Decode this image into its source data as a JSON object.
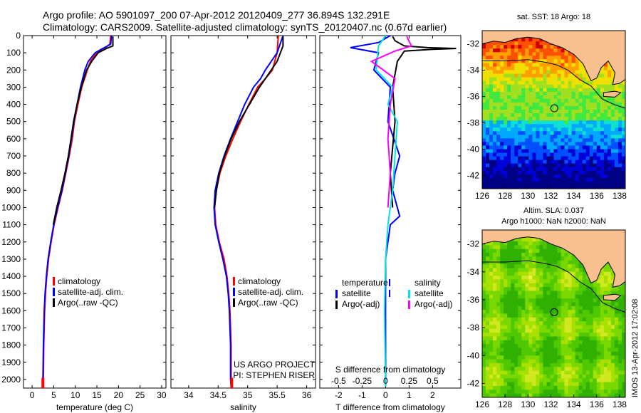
{
  "title": {
    "line1": "Argo profile: AO 5901097_200 07-Apr-2012 20120409_277 36.894S 132.291E",
    "line2": "Climatology: CARS2009. Satellite-adjusted climatology: synTS_20120407.nc (0.67d earlier)"
  },
  "side_text": "IMOS 13-Apr-2012 17:02:08",
  "colors": {
    "climatology": "#ff0000",
    "satellite": "#0000ff",
    "argo": "#000000",
    "satellite_salinity": "#00e5e5",
    "argo_salinity": "#ff00ff"
  },
  "chart_data": [
    {
      "type": "line",
      "id": "temperature",
      "xlabel": "temperature (deg C)",
      "ylabel": "",
      "xlim": [
        -2,
        31
      ],
      "ylim": [
        2050,
        0
      ],
      "y_reversed": true,
      "xticks": [
        0,
        5,
        10,
        15,
        20,
        25,
        30
      ],
      "yticks": [
        0,
        100,
        200,
        300,
        400,
        500,
        600,
        700,
        800,
        900,
        1000,
        1100,
        1200,
        1300,
        1400,
        1500,
        1600,
        1700,
        1800,
        1900,
        2000
      ],
      "legend": [
        "climatology",
        "satellite-adj. clim.",
        "Argo(..raw -QC)"
      ],
      "series": [
        {
          "name": "climatology",
          "color": "#ff0000",
          "x": [
            18.2,
            18.0,
            16.5,
            15.0,
            13.5,
            12.8,
            11.5,
            10.6,
            9.8,
            9.3,
            8.6,
            7.8,
            7.0,
            6.0,
            5.1,
            4.4,
            3.8,
            3.4,
            3.1,
            2.9,
            2.7,
            2.6,
            2.5
          ],
          "y": [
            0,
            50,
            80,
            100,
            150,
            200,
            300,
            400,
            500,
            600,
            700,
            800,
            900,
            1000,
            1100,
            1200,
            1300,
            1400,
            1500,
            1600,
            1800,
            2000,
            2040
          ]
        },
        {
          "name": "satellite",
          "color": "#0000ff",
          "x": [
            18.4,
            18.2,
            16.0,
            14.6,
            13.0,
            12.2,
            11.2,
            10.4,
            9.7,
            9.1,
            8.5,
            7.7,
            6.9,
            5.9,
            5.0,
            4.3,
            3.7,
            3.3,
            3.0,
            2.8,
            2.6,
            2.5,
            2.4
          ],
          "y": [
            0,
            50,
            80,
            100,
            150,
            200,
            300,
            400,
            500,
            600,
            700,
            800,
            900,
            1000,
            1100,
            1200,
            1300,
            1400,
            1500,
            1600,
            1800,
            2000,
            2040
          ]
        },
        {
          "name": "Argo",
          "color": "#000000",
          "x": [
            18.7,
            18.7,
            17.2,
            15.3,
            13.8,
            12.6,
            11.4,
            10.4,
            9.6,
            9.0,
            8.4,
            7.6,
            6.7,
            5.7,
            4.9
          ],
          "y": [
            5,
            60,
            75,
            100,
            150,
            200,
            300,
            400,
            500,
            600,
            700,
            800,
            900,
            1000,
            1100
          ]
        }
      ]
    },
    {
      "type": "line",
      "id": "salinity",
      "xlabel": "salinity",
      "ylabel": "",
      "xlim": [
        33.7,
        36.15
      ],
      "ylim": [
        2050,
        0
      ],
      "y_reversed": true,
      "xticks": [
        34,
        34.5,
        35,
        35.5,
        36
      ],
      "legend": [
        "climatology",
        "satellite-adj. clim.",
        "Argo(..raw -QC)"
      ],
      "annotation": [
        "US ARGO PROJECT",
        "PI: STEPHEN RISER"
      ],
      "series": [
        {
          "name": "climatology",
          "color": "#ff0000",
          "x": [
            35.52,
            35.5,
            35.42,
            35.3,
            35.17,
            35.02,
            34.88,
            34.75,
            34.63,
            34.53,
            34.47,
            34.44,
            34.46,
            34.52,
            34.6,
            34.65,
            34.68,
            34.7,
            34.72,
            34.72,
            34.73
          ],
          "y": [
            0,
            100,
            200,
            250,
            300,
            400,
            500,
            600,
            700,
            800,
            900,
            1000,
            1100,
            1200,
            1300,
            1400,
            1500,
            1600,
            1800,
            2000,
            2040
          ]
        },
        {
          "name": "satellite",
          "color": "#0000ff",
          "x": [
            35.6,
            35.5,
            35.3,
            35.22,
            35.1,
            34.95,
            34.83,
            34.71,
            34.6,
            34.51,
            34.45,
            34.43,
            34.45,
            34.51,
            34.58,
            34.64,
            34.67,
            34.69,
            34.71,
            34.71,
            34.72
          ],
          "y": [
            0,
            100,
            200,
            250,
            300,
            400,
            500,
            600,
            700,
            800,
            900,
            1000,
            1100,
            1200,
            1300,
            1400,
            1500,
            1600,
            1800,
            2000,
            2040
          ]
        },
        {
          "name": "Argo",
          "color": "#000000",
          "x": [
            35.6,
            35.6,
            35.5,
            35.4,
            35.2,
            35.03,
            34.86,
            34.72,
            34.61,
            34.52,
            34.47,
            34.44
          ],
          "y": [
            5,
            60,
            150,
            200,
            300,
            400,
            500,
            600,
            700,
            800,
            900,
            1000
          ]
        }
      ]
    },
    {
      "type": "line",
      "id": "difference",
      "xlabel_top": "S difference from climatology",
      "xlabel": "T difference from climatology",
      "xlim": [
        -2.8,
        3.2
      ],
      "ylim": [
        2050,
        0
      ],
      "y_reversed": true,
      "xticks_top": [
        -0.5,
        -0.25,
        0,
        0.25,
        0.5
      ],
      "xticks": [
        -2,
        -1,
        0,
        1,
        2
      ],
      "xticks_top_pos": [
        -2,
        -1,
        0,
        1,
        2
      ],
      "legend_left": [
        "temperature",
        "satellite",
        "Argo(-adj)"
      ],
      "legend_right": [
        "salinity",
        "satellite",
        "Argo(-adj)"
      ],
      "series": [
        {
          "name": "T satellite",
          "color": "#0000ff",
          "x": [
            0.2,
            -0.3,
            -1.5,
            -0.3,
            -0.5,
            0.2,
            0.1,
            0.6,
            0.4,
            0.3,
            0.5,
            0.6,
            0.2,
            0.0,
            0.0,
            0.0
          ],
          "y": [
            0,
            40,
            70,
            100,
            200,
            300,
            500,
            700,
            800,
            900,
            1000,
            1050,
            1100,
            1300,
            1600,
            2040
          ]
        },
        {
          "name": "T Argo(-adj)",
          "color": "#000000",
          "x": [
            0.3,
            0.4,
            0.8,
            1.8,
            3.0,
            2.0,
            0.8,
            0.5,
            0.3,
            0.4,
            0.2,
            0.3
          ],
          "y": [
            5,
            30,
            60,
            70,
            75,
            80,
            90,
            150,
            300,
            500,
            800,
            1000
          ]
        },
        {
          "name": "S satellite",
          "color": "#00e5e5",
          "x": [
            0.0,
            -0.3,
            -0.4,
            0.3,
            0.1,
            0.5,
            0.4,
            0.3,
            0.1,
            0.0,
            -0.05,
            0.0
          ],
          "y": [
            0,
            60,
            200,
            300,
            400,
            500,
            700,
            900,
            1100,
            1300,
            1600,
            2040
          ]
        },
        {
          "name": "S Argo(-adj)",
          "color": "#ff00ff",
          "x": [
            0.9,
            1.1,
            0.4,
            -0.6,
            0.4,
            0.2,
            0.1,
            0.2,
            0.1
          ],
          "y": [
            5,
            60,
            90,
            150,
            250,
            400,
            600,
            800,
            1000
          ]
        }
      ]
    },
    {
      "type": "heatmap",
      "id": "sst-map",
      "title": "sat. SST: 18 Argo: 18",
      "xlim": [
        126,
        138.5
      ],
      "ylim": [
        -43,
        -31
      ],
      "xticks": [
        126,
        128,
        130,
        132,
        134,
        136,
        138
      ],
      "yticks": [
        -32,
        -34,
        -36,
        -38,
        -40,
        -42
      ],
      "marker": {
        "lon": 132.291,
        "lat": -36.894
      },
      "palette": [
        "#000085",
        "#0000d8",
        "#0050ff",
        "#00a8ff",
        "#10e0d0",
        "#40e840",
        "#a0e020",
        "#f0e000",
        "#ffa000",
        "#ff5000",
        "#d00000"
      ]
    },
    {
      "type": "heatmap",
      "id": "sla-map",
      "title": "Altim. SLA: 0.037",
      "subtitle": "Argo h1000: NaN h2000: NaN",
      "xlim": [
        126,
        138.5
      ],
      "ylim": [
        -43,
        -31
      ],
      "xticks": [
        126,
        128,
        130,
        132,
        134,
        136,
        138
      ],
      "yticks": [
        -32,
        -34,
        -36,
        -38,
        -40,
        -42
      ],
      "marker": {
        "lon": 132.291,
        "lat": -36.894
      },
      "palette": [
        "#30b000",
        "#50c800",
        "#78d800",
        "#a8e000",
        "#d0e820",
        "#f0f040"
      ]
    }
  ]
}
